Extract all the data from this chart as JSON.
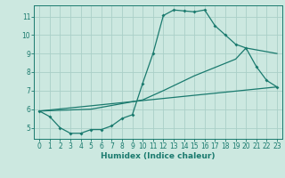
{
  "xlabel": "Humidex (Indice chaleur)",
  "bg_color": "#cce8e0",
  "grid_color": "#aacfc8",
  "line_color": "#1a7a6e",
  "xlim": [
    -0.5,
    23.5
  ],
  "ylim": [
    4.4,
    11.6
  ],
  "xticks": [
    0,
    1,
    2,
    3,
    4,
    5,
    6,
    7,
    8,
    9,
    10,
    11,
    12,
    13,
    14,
    15,
    16,
    17,
    18,
    19,
    20,
    21,
    22,
    23
  ],
  "yticks": [
    5,
    6,
    7,
    8,
    9,
    10,
    11
  ],
  "series1": [
    [
      0,
      5.9
    ],
    [
      1,
      5.6
    ],
    [
      2,
      5.0
    ],
    [
      3,
      4.7
    ],
    [
      4,
      4.7
    ],
    [
      5,
      4.9
    ],
    [
      6,
      4.9
    ],
    [
      7,
      5.1
    ],
    [
      8,
      5.5
    ],
    [
      9,
      5.7
    ],
    [
      10,
      7.4
    ],
    [
      11,
      9.0
    ],
    [
      12,
      11.05
    ],
    [
      13,
      11.35
    ],
    [
      14,
      11.3
    ],
    [
      15,
      11.25
    ],
    [
      16,
      11.35
    ],
    [
      17,
      10.5
    ],
    [
      18,
      10.0
    ],
    [
      19,
      9.5
    ],
    [
      20,
      9.3
    ],
    [
      21,
      8.3
    ],
    [
      22,
      7.55
    ],
    [
      23,
      7.2
    ]
  ],
  "series2": [
    [
      0,
      5.9
    ],
    [
      23,
      7.2
    ]
  ],
  "series3": [
    [
      0,
      5.9
    ],
    [
      5,
      6.0
    ],
    [
      10,
      6.5
    ],
    [
      12,
      7.0
    ],
    [
      15,
      7.8
    ],
    [
      19,
      8.7
    ],
    [
      20,
      9.3
    ],
    [
      23,
      9.0
    ]
  ]
}
